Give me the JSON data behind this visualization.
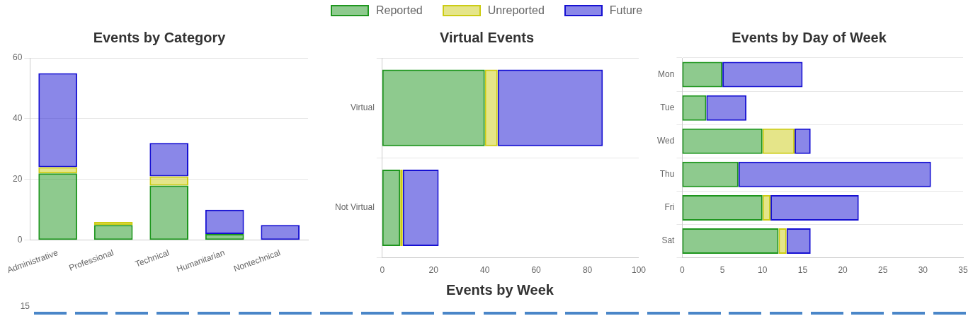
{
  "chart_data": [
    {
      "type": "bar",
      "title": "Events by Category",
      "stacked": true,
      "legend": "top",
      "grid": "y",
      "categories": [
        "Administrative",
        "Professional",
        "Technical",
        "Humanitarian",
        "Nontechnical"
      ],
      "ylim": [
        0,
        60
      ],
      "yticks": [
        0,
        20,
        40,
        60
      ],
      "series": [
        {
          "name": "Reported",
          "color": "#1e961e",
          "values": [
            22,
            5,
            18,
            2,
            0
          ]
        },
        {
          "name": "Unreported",
          "color": "#cccc14",
          "values": [
            2,
            1,
            3,
            0,
            0
          ]
        },
        {
          "name": "Future",
          "color": "#1610d2",
          "values": [
            31,
            0,
            11,
            8,
            5
          ]
        }
      ]
    },
    {
      "type": "bar",
      "title": "Virtual Events",
      "stacked": true,
      "orientation": "horizontal",
      "grid": "y",
      "categories": [
        "Virtual",
        "Not Virtual"
      ],
      "xlim": [
        0,
        100
      ],
      "xticks": [
        0,
        20,
        40,
        60,
        80,
        100
      ],
      "series": [
        {
          "color": "#1e961e",
          "values": [
            40,
            7
          ]
        },
        {
          "color": "#cccc14",
          "values": [
            5,
            1
          ]
        },
        {
          "color": "#1610d2",
          "values": [
            41,
            14
          ]
        }
      ]
    },
    {
      "type": "bar",
      "title": "Events by Day of Week",
      "stacked": true,
      "orientation": "horizontal",
      "grid": "y",
      "categories": [
        "Mon",
        "Tue",
        "Wed",
        "Thu",
        "Fri",
        "Sat"
      ],
      "xlim": [
        0,
        35
      ],
      "xticks": [
        0,
        5,
        10,
        15,
        20,
        25,
        30,
        35
      ],
      "series": [
        {
          "color": "#1e961e",
          "values": [
            5,
            3,
            10,
            7,
            10,
            12
          ]
        },
        {
          "color": "#cccc14",
          "values": [
            0,
            0,
            4,
            0,
            1,
            1
          ]
        },
        {
          "color": "#1610d2",
          "values": [
            10,
            5,
            2,
            24,
            11,
            3
          ]
        }
      ]
    },
    {
      "type": "other",
      "title": "Events by Week",
      "annotations": [
        "15"
      ]
    }
  ]
}
